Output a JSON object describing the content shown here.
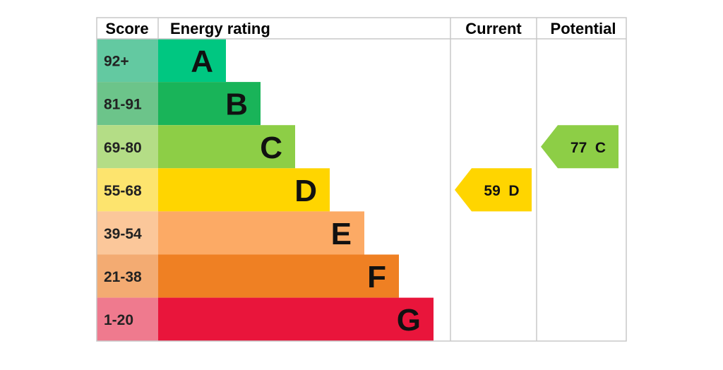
{
  "chart_data": {
    "type": "bar",
    "headers": {
      "score": "Score",
      "energy_rating": "Energy rating",
      "current": "Current",
      "potential": "Potential"
    },
    "bands": [
      {
        "letter": "A",
        "range": "92+",
        "color": "#00c781",
        "score_color": "#63c9a1"
      },
      {
        "letter": "B",
        "range": "81-91",
        "color": "#19b459",
        "score_color": "#6cc48a"
      },
      {
        "letter": "C",
        "range": "69-80",
        "color": "#8dce46",
        "score_color": "#b4dd86"
      },
      {
        "letter": "D",
        "range": "55-68",
        "color": "#ffd500",
        "score_color": "#fde46e"
      },
      {
        "letter": "E",
        "range": "39-54",
        "color": "#fcaa65",
        "score_color": "#fbc79a"
      },
      {
        "letter": "F",
        "range": "21-38",
        "color": "#ef8023",
        "score_color": "#f3ab72"
      },
      {
        "letter": "G",
        "range": "1-20",
        "color": "#e9153b",
        "score_color": "#ef7a8e"
      }
    ],
    "current": {
      "score": 59,
      "band": "D",
      "label": "59  D",
      "color": "#ffd500"
    },
    "potential": {
      "score": 77,
      "band": "C",
      "label": "77  C",
      "color": "#8dce46"
    }
  }
}
